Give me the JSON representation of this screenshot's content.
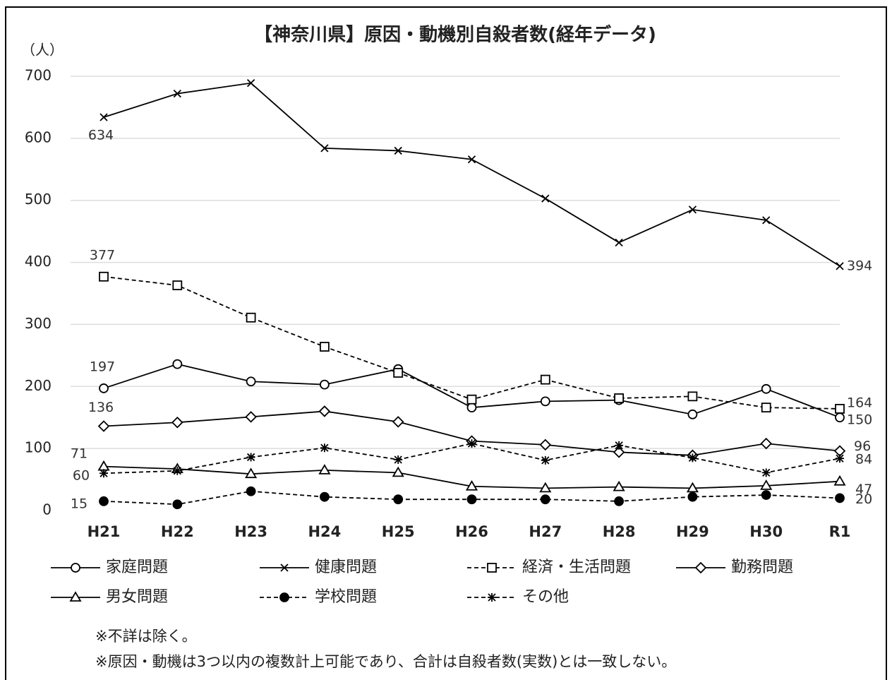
{
  "chart_data": {
    "type": "line",
    "title": "【神奈川県】原因・動機別自殺者数(経年データ)",
    "y_label": "（人）",
    "categories": [
      "H21",
      "H22",
      "H23",
      "H24",
      "H25",
      "H26",
      "H27",
      "H28",
      "H29",
      "H30",
      "R1"
    ],
    "series": [
      {
        "name": "家庭問題",
        "color": "#000000",
        "marker": "circle",
        "dashed": false,
        "values": [
          197,
          236,
          208,
          203,
          228,
          166,
          176,
          178,
          155,
          196,
          150
        ]
      },
      {
        "name": "健康問題",
        "color": "#000000",
        "marker": "x",
        "dashed": false,
        "values": [
          634,
          672,
          689,
          584,
          580,
          566,
          503,
          432,
          485,
          468,
          394
        ]
      },
      {
        "name": "経済・生活問題",
        "color": "#000000",
        "marker": "square",
        "dashed": true,
        "values": [
          377,
          363,
          311,
          264,
          222,
          179,
          211,
          181,
          184,
          166,
          164
        ]
      },
      {
        "name": "勤務問題",
        "color": "#000000",
        "marker": "diamond",
        "dashed": false,
        "values": [
          136,
          142,
          151,
          160,
          143,
          112,
          106,
          94,
          89,
          108,
          96
        ]
      },
      {
        "name": "男女問題",
        "color": "#000000",
        "marker": "triangle",
        "dashed": false,
        "values": [
          71,
          67,
          59,
          65,
          61,
          39,
          36,
          38,
          36,
          40,
          47
        ]
      },
      {
        "name": "学校問題",
        "color": "#000000",
        "marker": "dot",
        "dashed": true,
        "values": [
          15,
          10,
          31,
          22,
          18,
          18,
          18,
          15,
          22,
          25,
          20
        ]
      },
      {
        "name": "その他",
        "color": "#000000",
        "marker": "star",
        "dashed": true,
        "values": [
          60,
          64,
          86,
          101,
          82,
          108,
          81,
          105,
          85,
          61,
          84
        ]
      }
    ],
    "ylim": [
      0,
      700
    ],
    "yticks": [
      0,
      100,
      200,
      300,
      400,
      500,
      600,
      700
    ],
    "grid": true,
    "notes": [
      "※不詳は除く。",
      "※原因・動機は3つ以内の複数計上可能であり、合計は自殺者数(実数)とは一致しない。"
    ]
  }
}
